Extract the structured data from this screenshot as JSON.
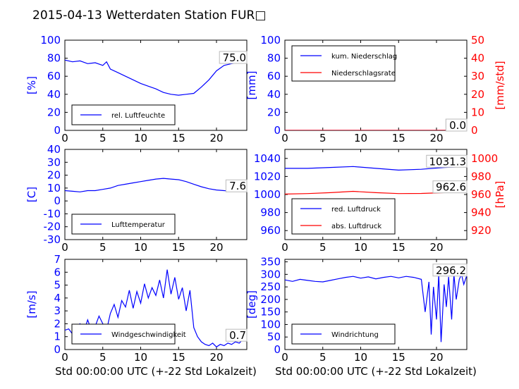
{
  "title": "2015-04-13 Wetterdaten Station FUR□",
  "colors": {
    "blue": "#0000ff",
    "red": "#ff0000",
    "black": "#000000"
  },
  "chart_data": [
    {
      "id": "humidity",
      "type": "line",
      "xlim": [
        0,
        24
      ],
      "xticks": [
        0,
        5,
        10,
        15,
        20
      ],
      "ylim": [
        0,
        100
      ],
      "yticks": [
        0,
        20,
        40,
        60,
        80,
        100
      ],
      "ylabel": "[%]",
      "legend": "bottom-left",
      "last_value_label": "75.0",
      "series": [
        {
          "name": "rel. Luftfeuchte",
          "color": "blue",
          "x": [
            0,
            1,
            2,
            3,
            4,
            5,
            5.5,
            6,
            7,
            8,
            9,
            10,
            11,
            12,
            13,
            14,
            15,
            16,
            17,
            18,
            19,
            20,
            21,
            22,
            23,
            24
          ],
          "y": [
            78,
            76,
            77,
            74,
            75,
            72,
            76,
            68,
            64,
            60,
            56,
            52,
            49,
            46,
            42,
            40,
            39,
            40,
            41,
            48,
            56,
            66,
            72,
            74,
            75,
            75
          ]
        }
      ]
    },
    {
      "id": "precip",
      "type": "line",
      "xlim": [
        0,
        24
      ],
      "xticks": [
        0,
        5,
        10,
        15,
        20
      ],
      "ylim": [
        0,
        100
      ],
      "yticks": [
        0,
        20,
        40,
        60,
        80,
        100
      ],
      "ylabel": "[mm]",
      "y2lim": [
        0,
        50
      ],
      "y2ticks": [
        0,
        10,
        20,
        30,
        40,
        50
      ],
      "y2label": "[mm/std]",
      "legend": "top-left",
      "last_value_labels": [
        "0.0",
        "0.0"
      ],
      "series": [
        {
          "name": "kum. Niederschlag",
          "color": "blue",
          "axis": "left",
          "x": [
            0,
            24
          ],
          "y": [
            0,
            0
          ]
        },
        {
          "name": "Niederschlagsrate",
          "color": "red",
          "axis": "right",
          "x": [
            0,
            24
          ],
          "y": [
            0,
            0
          ]
        }
      ]
    },
    {
      "id": "temperature",
      "type": "line",
      "xlim": [
        0,
        24
      ],
      "xticks": [
        0,
        5,
        10,
        15,
        20
      ],
      "ylim": [
        -30,
        40
      ],
      "yticks": [
        -30,
        -20,
        -10,
        0,
        10,
        20,
        30,
        40
      ],
      "ylabel": "[C]",
      "legend": "bottom-left",
      "last_value_label": "7.6",
      "series": [
        {
          "name": "Lufttemperatur",
          "color": "blue",
          "x": [
            0,
            1,
            2,
            3,
            4,
            5,
            6,
            7,
            8,
            9,
            10,
            11,
            12,
            13,
            14,
            15,
            16,
            17,
            18,
            19,
            20,
            21,
            22,
            23,
            24
          ],
          "y": [
            8,
            7.5,
            7,
            8,
            8,
            9,
            10,
            12,
            13,
            14,
            15,
            16,
            17,
            17.5,
            17,
            16.5,
            15,
            13,
            11,
            9.5,
            8.5,
            8,
            7.8,
            7.6,
            7.6
          ]
        }
      ]
    },
    {
      "id": "pressure",
      "type": "line",
      "xlim": [
        0,
        24
      ],
      "xticks": [
        0,
        5,
        10,
        15,
        20
      ],
      "ylim": [
        950,
        1050
      ],
      "yticks": [
        960,
        980,
        1000,
        1020,
        1040
      ],
      "ylabel": "",
      "y2lim": [
        910,
        1010
      ],
      "y2ticks": [
        920,
        940,
        960,
        980,
        1000
      ],
      "y2label": "[hPa]",
      "legend": "bottom-left",
      "last_value_labels": [
        "1031.3",
        "962.6"
      ],
      "series": [
        {
          "name": "red. Luftdruck",
          "color": "blue",
          "axis": "left",
          "x": [
            0,
            3,
            6,
            9,
            12,
            15,
            18,
            21,
            24
          ],
          "y": [
            1029,
            1029,
            1030,
            1031,
            1029,
            1027,
            1028,
            1030,
            1031
          ]
        },
        {
          "name": "abs. Luftdruck",
          "color": "red",
          "axis": "right",
          "x": [
            0,
            3,
            6,
            9,
            12,
            15,
            18,
            21,
            24
          ],
          "y": [
            960.5,
            961,
            962,
            963.5,
            962,
            961,
            961.2,
            962,
            962.6
          ]
        }
      ]
    },
    {
      "id": "wind",
      "type": "line",
      "xlim": [
        0,
        24
      ],
      "xticks": [
        0,
        5,
        10,
        15,
        20
      ],
      "ylim": [
        0,
        7
      ],
      "yticks": [
        0,
        1,
        2,
        3,
        4,
        5,
        6,
        7
      ],
      "ylabel": "[m/s]",
      "xlabel": "Std 00:00:00 UTC (+-22 Std Lokalzeit)",
      "legend": "bottom-left",
      "last_value_label": "0.7",
      "series": [
        {
          "name": "Windgeschwindigkeit",
          "color": "blue",
          "x": [
            0,
            0.5,
            1,
            1.5,
            2,
            2.5,
            3,
            3.5,
            4,
            4.5,
            5,
            5.5,
            6,
            6.5,
            7,
            7.5,
            8,
            8.5,
            9,
            9.5,
            10,
            10.5,
            11,
            11.5,
            12,
            12.5,
            13,
            13.5,
            14,
            14.5,
            15,
            15.5,
            16,
            16.5,
            17,
            17.5,
            18,
            18.5,
            19,
            19.5,
            20,
            20.5,
            21,
            21.5,
            22,
            22.5,
            23,
            23.5,
            24
          ],
          "y": [
            1.5,
            1.6,
            1.2,
            1.8,
            2.0,
            1.4,
            2.3,
            1.5,
            1.8,
            2.6,
            2.0,
            1.5,
            2.8,
            3.5,
            2.5,
            3.8,
            3.3,
            4.6,
            3.2,
            4.5,
            3.6,
            5.1,
            4.0,
            4.8,
            4.2,
            5.4,
            4.0,
            6.2,
            4.3,
            5.6,
            3.9,
            4.8,
            3.0,
            4.6,
            1.7,
            1.0,
            0.6,
            0.4,
            0.3,
            0.5,
            0.2,
            0.4,
            0.3,
            0.5,
            0.4,
            0.6,
            0.5,
            0.8,
            0.7
          ]
        }
      ]
    },
    {
      "id": "winddir",
      "type": "line",
      "xlim": [
        0,
        24
      ],
      "xticks": [
        0,
        5,
        10,
        15,
        20
      ],
      "ylim": [
        0,
        360
      ],
      "yticks": [
        0,
        50,
        100,
        150,
        200,
        250,
        300,
        350
      ],
      "ylabel": "[deg]",
      "xlabel": "Std 00:00:00 UTC (+-22 Std Lokalzeit)",
      "legend": "bottom-left",
      "last_value_label": "296.2",
      "series": [
        {
          "name": "Windrichtung",
          "color": "blue",
          "x": [
            0,
            1,
            2,
            3,
            4,
            5,
            6,
            7,
            8,
            9,
            10,
            11,
            12,
            13,
            14,
            15,
            16,
            17,
            18,
            18.5,
            19,
            19.3,
            19.6,
            20,
            20.3,
            20.6,
            21,
            21.3,
            21.6,
            22,
            22.3,
            22.6,
            23,
            23.3,
            23.6,
            24
          ],
          "y": [
            278,
            272,
            280,
            276,
            272,
            270,
            276,
            282,
            288,
            292,
            285,
            290,
            282,
            288,
            292,
            286,
            292,
            288,
            280,
            150,
            270,
            60,
            250,
            120,
            300,
            30,
            260,
            170,
            290,
            120,
            300,
            200,
            280,
            300,
            260,
            296
          ]
        }
      ]
    }
  ]
}
